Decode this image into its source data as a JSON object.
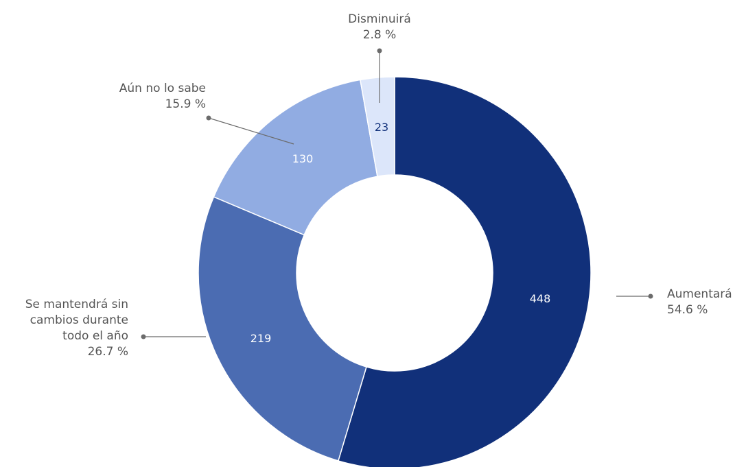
{
  "chart_data": {
    "type": "pie",
    "donut": true,
    "title": "",
    "slices": [
      {
        "label": "Aumentará",
        "value": 448,
        "percent": "54.6 %",
        "color": "#11307a",
        "value_label_color": "#ffffff"
      },
      {
        "label": "Se mantendrá sin cambios durante todo el año",
        "label_lines": [
          "Se mantendrá sin",
          "cambios durante",
          "todo el año"
        ],
        "value": 219,
        "percent": "26.7 %",
        "color": "#4b6cb2",
        "value_label_color": "#ffffff"
      },
      {
        "label": "Aún no lo sabe",
        "value": 130,
        "percent": "15.9 %",
        "color": "#91ace2",
        "value_label_color": "#ffffff"
      },
      {
        "label": "Disminuirá",
        "value": 23,
        "percent": "2.8 %",
        "color": "#dce6fa",
        "value_label_color": "#11307a"
      }
    ],
    "start_angle": "top",
    "direction": "clockwise",
    "leader_color": "#6b6b6b",
    "label_color": "#555555"
  }
}
